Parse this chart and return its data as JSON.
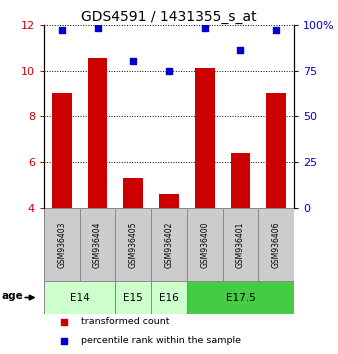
{
  "title": "GDS4591 / 1431355_s_at",
  "samples": [
    "GSM936403",
    "GSM936404",
    "GSM936405",
    "GSM936402",
    "GSM936400",
    "GSM936401",
    "GSM936406"
  ],
  "transformed_counts": [
    9.0,
    10.55,
    5.3,
    4.6,
    10.1,
    6.4,
    9.0
  ],
  "percentile_ranks": [
    97,
    98,
    80,
    75,
    98,
    86,
    97
  ],
  "ylim_left": [
    4,
    12
  ],
  "ylim_right": [
    0,
    100
  ],
  "yticks_left": [
    4,
    6,
    8,
    10,
    12
  ],
  "yticks_right": [
    0,
    25,
    50,
    75,
    100
  ],
  "yticklabels_right": [
    "0",
    "25",
    "50",
    "75",
    "100%"
  ],
  "bar_color": "#cc0000",
  "dot_color": "#0000cc",
  "age_groups": [
    {
      "label": "E14",
      "samples": [
        0,
        1
      ],
      "color": "#ccffcc"
    },
    {
      "label": "E15",
      "samples": [
        2
      ],
      "color": "#ccffcc"
    },
    {
      "label": "E16",
      "samples": [
        3
      ],
      "color": "#ccffcc"
    },
    {
      "label": "E17.5",
      "samples": [
        4,
        5,
        6
      ],
      "color": "#44cc44"
    }
  ],
  "age_label": "age",
  "legend_items": [
    {
      "label": "transformed count",
      "color": "#cc0000",
      "marker": "s"
    },
    {
      "label": "percentile rank within the sample",
      "color": "#0000cc",
      "marker": "s"
    }
  ],
  "sample_box_color": "#cccccc",
  "dotted_line_color": "#000000",
  "title_fontsize": 10,
  "tick_fontsize": 8,
  "bar_width": 0.55
}
